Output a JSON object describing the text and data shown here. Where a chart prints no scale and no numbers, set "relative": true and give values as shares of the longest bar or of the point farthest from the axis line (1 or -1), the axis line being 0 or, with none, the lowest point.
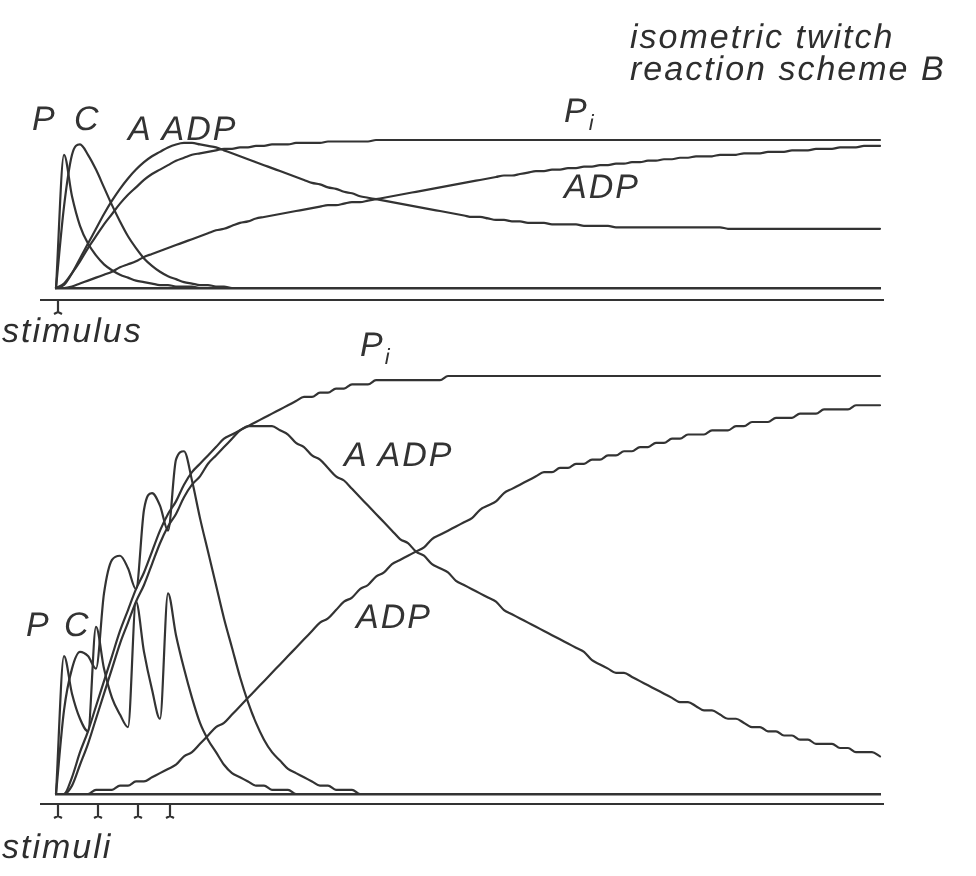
{
  "chart_data": [
    {
      "type": "line",
      "title": "isometric twitch reaction scheme B",
      "xlabel": "stimulus",
      "relative": true,
      "tick_labels": false,
      "marker": "none",
      "line_style": "solid",
      "categories": [
        null,
        null,
        null,
        null,
        null,
        null,
        null,
        null,
        null,
        null,
        null,
        null,
        null,
        null,
        null,
        null,
        null,
        null,
        null,
        null,
        null,
        null,
        null,
        null,
        null,
        null,
        null,
        null,
        null,
        null,
        null,
        null,
        null,
        null,
        null,
        null,
        null,
        null,
        null,
        null,
        null,
        null,
        null,
        null,
        null,
        null,
        null,
        null,
        null,
        null,
        null,
        null,
        null,
        null,
        null,
        null,
        null,
        null,
        null,
        null,
        null,
        null,
        null,
        null,
        null,
        null,
        null,
        null,
        null,
        null,
        null,
        null,
        null,
        null,
        null,
        null,
        null,
        null,
        null,
        null,
        null,
        null,
        null,
        null,
        null,
        null,
        null,
        null,
        null,
        null,
        null,
        null,
        null,
        null,
        null,
        null,
        null,
        null,
        null,
        null,
        null,
        null,
        null,
        null
      ],
      "series": [
        {
          "name": "P",
          "color": "#333333",
          "values": [
            0,
            0.9,
            0.62,
            0.42,
            0.3,
            0.22,
            0.16,
            0.12,
            0.09,
            0.07,
            0.05,
            0.04,
            0.03,
            0.02,
            0.02,
            0.01,
            0.01,
            0.01,
            0,
            0,
            0,
            0,
            0,
            0,
            0,
            0,
            0,
            0,
            0,
            0,
            0,
            0,
            0,
            0,
            0,
            0,
            0,
            0,
            0,
            0,
            0,
            0,
            0,
            0,
            0,
            0,
            0,
            0,
            0,
            0,
            0,
            0,
            0,
            0,
            0,
            0,
            0,
            0,
            0,
            0,
            0,
            0,
            0,
            0,
            0,
            0,
            0,
            0,
            0,
            0,
            0,
            0,
            0,
            0,
            0,
            0,
            0,
            0,
            0,
            0,
            0,
            0,
            0,
            0,
            0,
            0,
            0,
            0,
            0,
            0,
            0,
            0,
            0,
            0,
            0,
            0,
            0,
            0,
            0,
            0,
            0,
            0,
            0,
            0
          ]
        },
        {
          "name": "C",
          "color": "#333333",
          "values": [
            0,
            0.55,
            0.9,
            0.97,
            0.9,
            0.8,
            0.68,
            0.56,
            0.45,
            0.35,
            0.27,
            0.2,
            0.15,
            0.11,
            0.08,
            0.06,
            0.04,
            0.03,
            0.02,
            0.02,
            0.01,
            0.01,
            0,
            0,
            0,
            0,
            0,
            0,
            0,
            0,
            0,
            0,
            0,
            0,
            0,
            0,
            0,
            0,
            0,
            0,
            0,
            0,
            0,
            0,
            0,
            0,
            0,
            0,
            0,
            0,
            0,
            0,
            0,
            0,
            0,
            0,
            0,
            0,
            0,
            0,
            0,
            0,
            0,
            0,
            0,
            0,
            0,
            0,
            0,
            0,
            0,
            0,
            0,
            0,
            0,
            0,
            0,
            0,
            0,
            0,
            0,
            0,
            0,
            0,
            0,
            0,
            0,
            0,
            0,
            0,
            0,
            0,
            0,
            0,
            0,
            0,
            0,
            0,
            0,
            0,
            0,
            0,
            0,
            0
          ]
        },
        {
          "name": "A ADP",
          "color": "#333333",
          "values": [
            0,
            0.02,
            0.1,
            0.2,
            0.3,
            0.4,
            0.5,
            0.59,
            0.67,
            0.74,
            0.8,
            0.85,
            0.89,
            0.92,
            0.95,
            0.97,
            0.98,
            0.98,
            0.97,
            0.96,
            0.95,
            0.93,
            0.91,
            0.89,
            0.87,
            0.85,
            0.83,
            0.81,
            0.79,
            0.77,
            0.75,
            0.73,
            0.71,
            0.7,
            0.68,
            0.67,
            0.65,
            0.64,
            0.62,
            0.61,
            0.6,
            0.59,
            0.58,
            0.57,
            0.56,
            0.55,
            0.54,
            0.53,
            0.52,
            0.51,
            0.5,
            0.49,
            0.48,
            0.48,
            0.47,
            0.46,
            0.46,
            0.45,
            0.45,
            0.44,
            0.44,
            0.44,
            0.43,
            0.43,
            0.43,
            0.43,
            0.42,
            0.42,
            0.42,
            0.42,
            0.41,
            0.41,
            0.41,
            0.41,
            0.41,
            0.41,
            0.41,
            0.41,
            0.41,
            0.41,
            0.41,
            0.41,
            0.41,
            0.41,
            0.4,
            0.4,
            0.4,
            0.4,
            0.4,
            0.4,
            0.4,
            0.4,
            0.4,
            0.4,
            0.4,
            0.4,
            0.4,
            0.4,
            0.4,
            0.4,
            0.4,
            0.4,
            0.4,
            0.4
          ]
        },
        {
          "name": "P$_{i}$",
          "color": "#333333",
          "values": [
            0,
            0.03,
            0.1,
            0.18,
            0.27,
            0.35,
            0.43,
            0.5,
            0.57,
            0.63,
            0.68,
            0.73,
            0.77,
            0.8,
            0.83,
            0.86,
            0.88,
            0.9,
            0.91,
            0.92,
            0.93,
            0.94,
            0.94,
            0.95,
            0.95,
            0.96,
            0.96,
            0.97,
            0.97,
            0.97,
            0.98,
            0.98,
            0.98,
            0.98,
            0.99,
            0.99,
            0.99,
            0.99,
            0.99,
            0.99,
            1,
            1,
            1,
            1,
            1,
            1,
            1,
            1,
            1,
            1,
            1,
            1,
            1,
            1,
            1,
            1,
            1,
            1,
            1,
            1,
            1,
            1,
            1,
            1,
            1,
            1,
            1,
            1,
            1,
            1,
            1,
            1,
            1,
            1,
            1,
            1,
            1,
            1,
            1,
            1,
            1,
            1,
            1,
            1,
            1,
            1,
            1,
            1,
            1,
            1,
            1,
            1,
            1,
            1,
            1,
            1,
            1,
            1,
            1,
            1,
            1,
            1,
            1,
            1
          ]
        },
        {
          "name": "ADP",
          "color": "#333333",
          "values": [
            0,
            0,
            0.01,
            0.03,
            0.05,
            0.07,
            0.09,
            0.11,
            0.14,
            0.16,
            0.18,
            0.21,
            0.23,
            0.25,
            0.27,
            0.29,
            0.31,
            0.33,
            0.35,
            0.37,
            0.39,
            0.4,
            0.42,
            0.44,
            0.45,
            0.47,
            0.48,
            0.49,
            0.5,
            0.51,
            0.52,
            0.53,
            0.54,
            0.55,
            0.56,
            0.56,
            0.57,
            0.58,
            0.58,
            0.59,
            0.6,
            0.61,
            0.62,
            0.63,
            0.64,
            0.65,
            0.66,
            0.67,
            0.68,
            0.69,
            0.7,
            0.71,
            0.72,
            0.73,
            0.74,
            0.75,
            0.76,
            0.76,
            0.77,
            0.78,
            0.79,
            0.79,
            0.8,
            0.8,
            0.81,
            0.81,
            0.82,
            0.82,
            0.83,
            0.83,
            0.84,
            0.84,
            0.85,
            0.85,
            0.86,
            0.86,
            0.87,
            0.87,
            0.88,
            0.88,
            0.89,
            0.89,
            0.89,
            0.9,
            0.9,
            0.9,
            0.91,
            0.91,
            0.91,
            0.92,
            0.92,
            0.92,
            0.93,
            0.93,
            0.93,
            0.94,
            0.94,
            0.94,
            0.95,
            0.95,
            0.95,
            0.96,
            0.96,
            0.96
          ]
        }
      ]
    },
    {
      "type": "line",
      "xlabel": "stimuli",
      "relative": true,
      "tick_labels": false,
      "marker": "none",
      "line_style": "solid",
      "categories": [
        null,
        null,
        null,
        null,
        null,
        null,
        null,
        null,
        null,
        null,
        null,
        null,
        null,
        null,
        null,
        null,
        null,
        null,
        null,
        null,
        null,
        null,
        null,
        null,
        null,
        null,
        null,
        null,
        null,
        null,
        null,
        null,
        null,
        null,
        null,
        null,
        null,
        null,
        null,
        null,
        null,
        null,
        null,
        null,
        null,
        null,
        null,
        null,
        null,
        null,
        null,
        null,
        null,
        null,
        null,
        null,
        null,
        null,
        null,
        null,
        null,
        null,
        null,
        null,
        null,
        null,
        null,
        null,
        null,
        null,
        null,
        null,
        null,
        null,
        null,
        null,
        null,
        null,
        null,
        null,
        null,
        null,
        null,
        null,
        null,
        null,
        null,
        null,
        null,
        null,
        null,
        null,
        null,
        null,
        null,
        null,
        null,
        null,
        null,
        null,
        null,
        null,
        null,
        null
      ],
      "series": [
        {
          "name": "P",
          "color": "#333333",
          "values": [
            0,
            0.33,
            0.24,
            0.18,
            0.15,
            0.4,
            0.3,
            0.23,
            0.19,
            0.16,
            0.46,
            0.34,
            0.25,
            0.18,
            0.48,
            0.38,
            0.3,
            0.23,
            0.17,
            0.13,
            0.1,
            0.07,
            0.05,
            0.04,
            0.03,
            0.02,
            0.02,
            0.01,
            0.01,
            0.01,
            0,
            0,
            0,
            0,
            0,
            0,
            0,
            0,
            0,
            0,
            0,
            0,
            0,
            0,
            0,
            0,
            0,
            0,
            0,
            0,
            0,
            0,
            0,
            0,
            0,
            0,
            0,
            0,
            0,
            0,
            0,
            0,
            0,
            0,
            0,
            0,
            0,
            0,
            0,
            0,
            0,
            0,
            0,
            0,
            0,
            0,
            0,
            0,
            0,
            0,
            0,
            0,
            0,
            0,
            0,
            0,
            0,
            0,
            0,
            0,
            0,
            0,
            0,
            0,
            0,
            0,
            0,
            0,
            0,
            0,
            0,
            0,
            0,
            0
          ]
        },
        {
          "name": "C",
          "color": "#333333",
          "values": [
            0,
            0.2,
            0.3,
            0.34,
            0.33,
            0.3,
            0.48,
            0.56,
            0.57,
            0.54,
            0.49,
            0.68,
            0.72,
            0.69,
            0.63,
            0.8,
            0.82,
            0.75,
            0.66,
            0.58,
            0.5,
            0.42,
            0.35,
            0.28,
            0.22,
            0.17,
            0.13,
            0.1,
            0.08,
            0.06,
            0.05,
            0.04,
            0.03,
            0.02,
            0.02,
            0.01,
            0.01,
            0.01,
            0,
            0,
            0,
            0,
            0,
            0,
            0,
            0,
            0,
            0,
            0,
            0,
            0,
            0,
            0,
            0,
            0,
            0,
            0,
            0,
            0,
            0,
            0,
            0,
            0,
            0,
            0,
            0,
            0,
            0,
            0,
            0,
            0,
            0,
            0,
            0,
            0,
            0,
            0,
            0,
            0,
            0,
            0,
            0,
            0,
            0,
            0,
            0,
            0,
            0,
            0,
            0,
            0,
            0,
            0,
            0,
            0,
            0,
            0,
            0,
            0,
            0,
            0,
            0,
            0,
            0
          ]
        },
        {
          "name": "A ADP",
          "color": "#333333",
          "values": [
            0,
            0,
            0.04,
            0.1,
            0.15,
            0.21,
            0.27,
            0.33,
            0.39,
            0.44,
            0.49,
            0.53,
            0.58,
            0.63,
            0.67,
            0.7,
            0.74,
            0.77,
            0.79,
            0.81,
            0.83,
            0.85,
            0.86,
            0.87,
            0.88,
            0.88,
            0.88,
            0.88,
            0.87,
            0.86,
            0.84,
            0.83,
            0.81,
            0.8,
            0.78,
            0.76,
            0.75,
            0.73,
            0.71,
            0.69,
            0.67,
            0.65,
            0.63,
            0.61,
            0.6,
            0.58,
            0.57,
            0.55,
            0.54,
            0.53,
            0.51,
            0.5,
            0.49,
            0.48,
            0.47,
            0.46,
            0.44,
            0.43,
            0.42,
            0.41,
            0.4,
            0.39,
            0.38,
            0.37,
            0.36,
            0.35,
            0.34,
            0.32,
            0.31,
            0.3,
            0.29,
            0.29,
            0.28,
            0.27,
            0.26,
            0.25,
            0.24,
            0.23,
            0.22,
            0.22,
            0.21,
            0.2,
            0.2,
            0.19,
            0.18,
            0.18,
            0.17,
            0.16,
            0.16,
            0.15,
            0.15,
            0.14,
            0.14,
            0.13,
            0.13,
            0.12,
            0.12,
            0.12,
            0.11,
            0.11,
            0.1,
            0.1,
            0.1,
            0.09
          ]
        },
        {
          "name": "P$_{i}$",
          "color": "#333333",
          "values": [
            0,
            0,
            0.02,
            0.07,
            0.12,
            0.18,
            0.24,
            0.3,
            0.36,
            0.41,
            0.46,
            0.5,
            0.55,
            0.6,
            0.64,
            0.67,
            0.71,
            0.74,
            0.76,
            0.79,
            0.81,
            0.83,
            0.85,
            0.87,
            0.88,
            0.89,
            0.9,
            0.91,
            0.92,
            0.93,
            0.94,
            0.95,
            0.95,
            0.96,
            0.96,
            0.97,
            0.97,
            0.98,
            0.98,
            0.98,
            0.99,
            0.99,
            0.99,
            0.99,
            0.99,
            0.99,
            0.99,
            0.99,
            0.99,
            1,
            1,
            1,
            1,
            1,
            1,
            1,
            1,
            1,
            1,
            1,
            1,
            1,
            1,
            1,
            1,
            1,
            1,
            1,
            1,
            1,
            1,
            1,
            1,
            1,
            1,
            1,
            1,
            1,
            1,
            1,
            1,
            1,
            1,
            1,
            1,
            1,
            1,
            1,
            1,
            1,
            1,
            1,
            1,
            1,
            1,
            1,
            1,
            1,
            1,
            1,
            1,
            1,
            1,
            1
          ]
        },
        {
          "name": "ADP",
          "color": "#333333",
          "values": [
            0,
            0,
            0,
            0,
            0,
            0.01,
            0.01,
            0.01,
            0.02,
            0.02,
            0.03,
            0.03,
            0.04,
            0.05,
            0.06,
            0.07,
            0.09,
            0.1,
            0.12,
            0.14,
            0.16,
            0.17,
            0.19,
            0.21,
            0.23,
            0.25,
            0.27,
            0.29,
            0.31,
            0.33,
            0.35,
            0.37,
            0.39,
            0.41,
            0.42,
            0.44,
            0.46,
            0.47,
            0.49,
            0.5,
            0.52,
            0.53,
            0.55,
            0.56,
            0.57,
            0.58,
            0.59,
            0.61,
            0.62,
            0.63,
            0.64,
            0.65,
            0.66,
            0.68,
            0.69,
            0.7,
            0.72,
            0.73,
            0.74,
            0.75,
            0.76,
            0.77,
            0.77,
            0.78,
            0.78,
            0.79,
            0.79,
            0.8,
            0.8,
            0.81,
            0.81,
            0.82,
            0.82,
            0.83,
            0.83,
            0.84,
            0.84,
            0.85,
            0.85,
            0.86,
            0.86,
            0.86,
            0.87,
            0.87,
            0.87,
            0.88,
            0.88,
            0.89,
            0.89,
            0.89,
            0.9,
            0.9,
            0.9,
            0.91,
            0.91,
            0.91,
            0.92,
            0.92,
            0.92,
            0.92,
            0.93,
            0.93,
            0.93,
            0.93
          ]
        }
      ]
    }
  ]
}
